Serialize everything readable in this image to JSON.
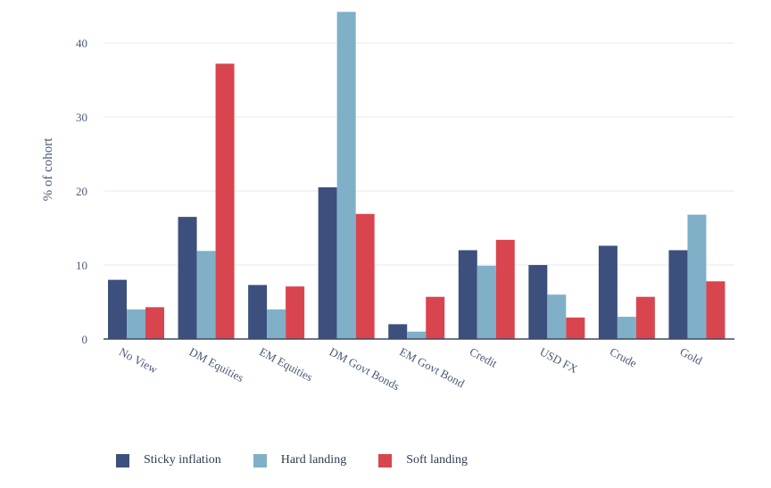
{
  "chart_data": {
    "type": "bar",
    "ylabel": "% of cohort",
    "xlabel": "",
    "ylim": [
      0,
      44
    ],
    "yticks": [
      0,
      10,
      20,
      30,
      40
    ],
    "grid": true,
    "legend_position": "bottom",
    "categories": [
      "No View",
      "DM Equities",
      "EM Equities",
      "DM Govt Bonds",
      "EM Govt Bond",
      "Credit",
      "USD FX",
      "Crude",
      "Gold"
    ],
    "series": [
      {
        "name": "Sticky inflation",
        "color": "#3d4f7c",
        "values": [
          8,
          16.5,
          7.3,
          20.5,
          2,
          12,
          10,
          12.6,
          12
        ]
      },
      {
        "name": "Hard landing",
        "color": "#7fb0c8",
        "values": [
          4,
          11.9,
          4,
          44.2,
          1,
          9.9,
          6,
          3,
          16.8
        ]
      },
      {
        "name": "Soft landing",
        "color": "#d9454f",
        "values": [
          4.3,
          37.2,
          7.1,
          16.9,
          5.7,
          13.4,
          2.9,
          5.7,
          7.8
        ]
      }
    ]
  }
}
